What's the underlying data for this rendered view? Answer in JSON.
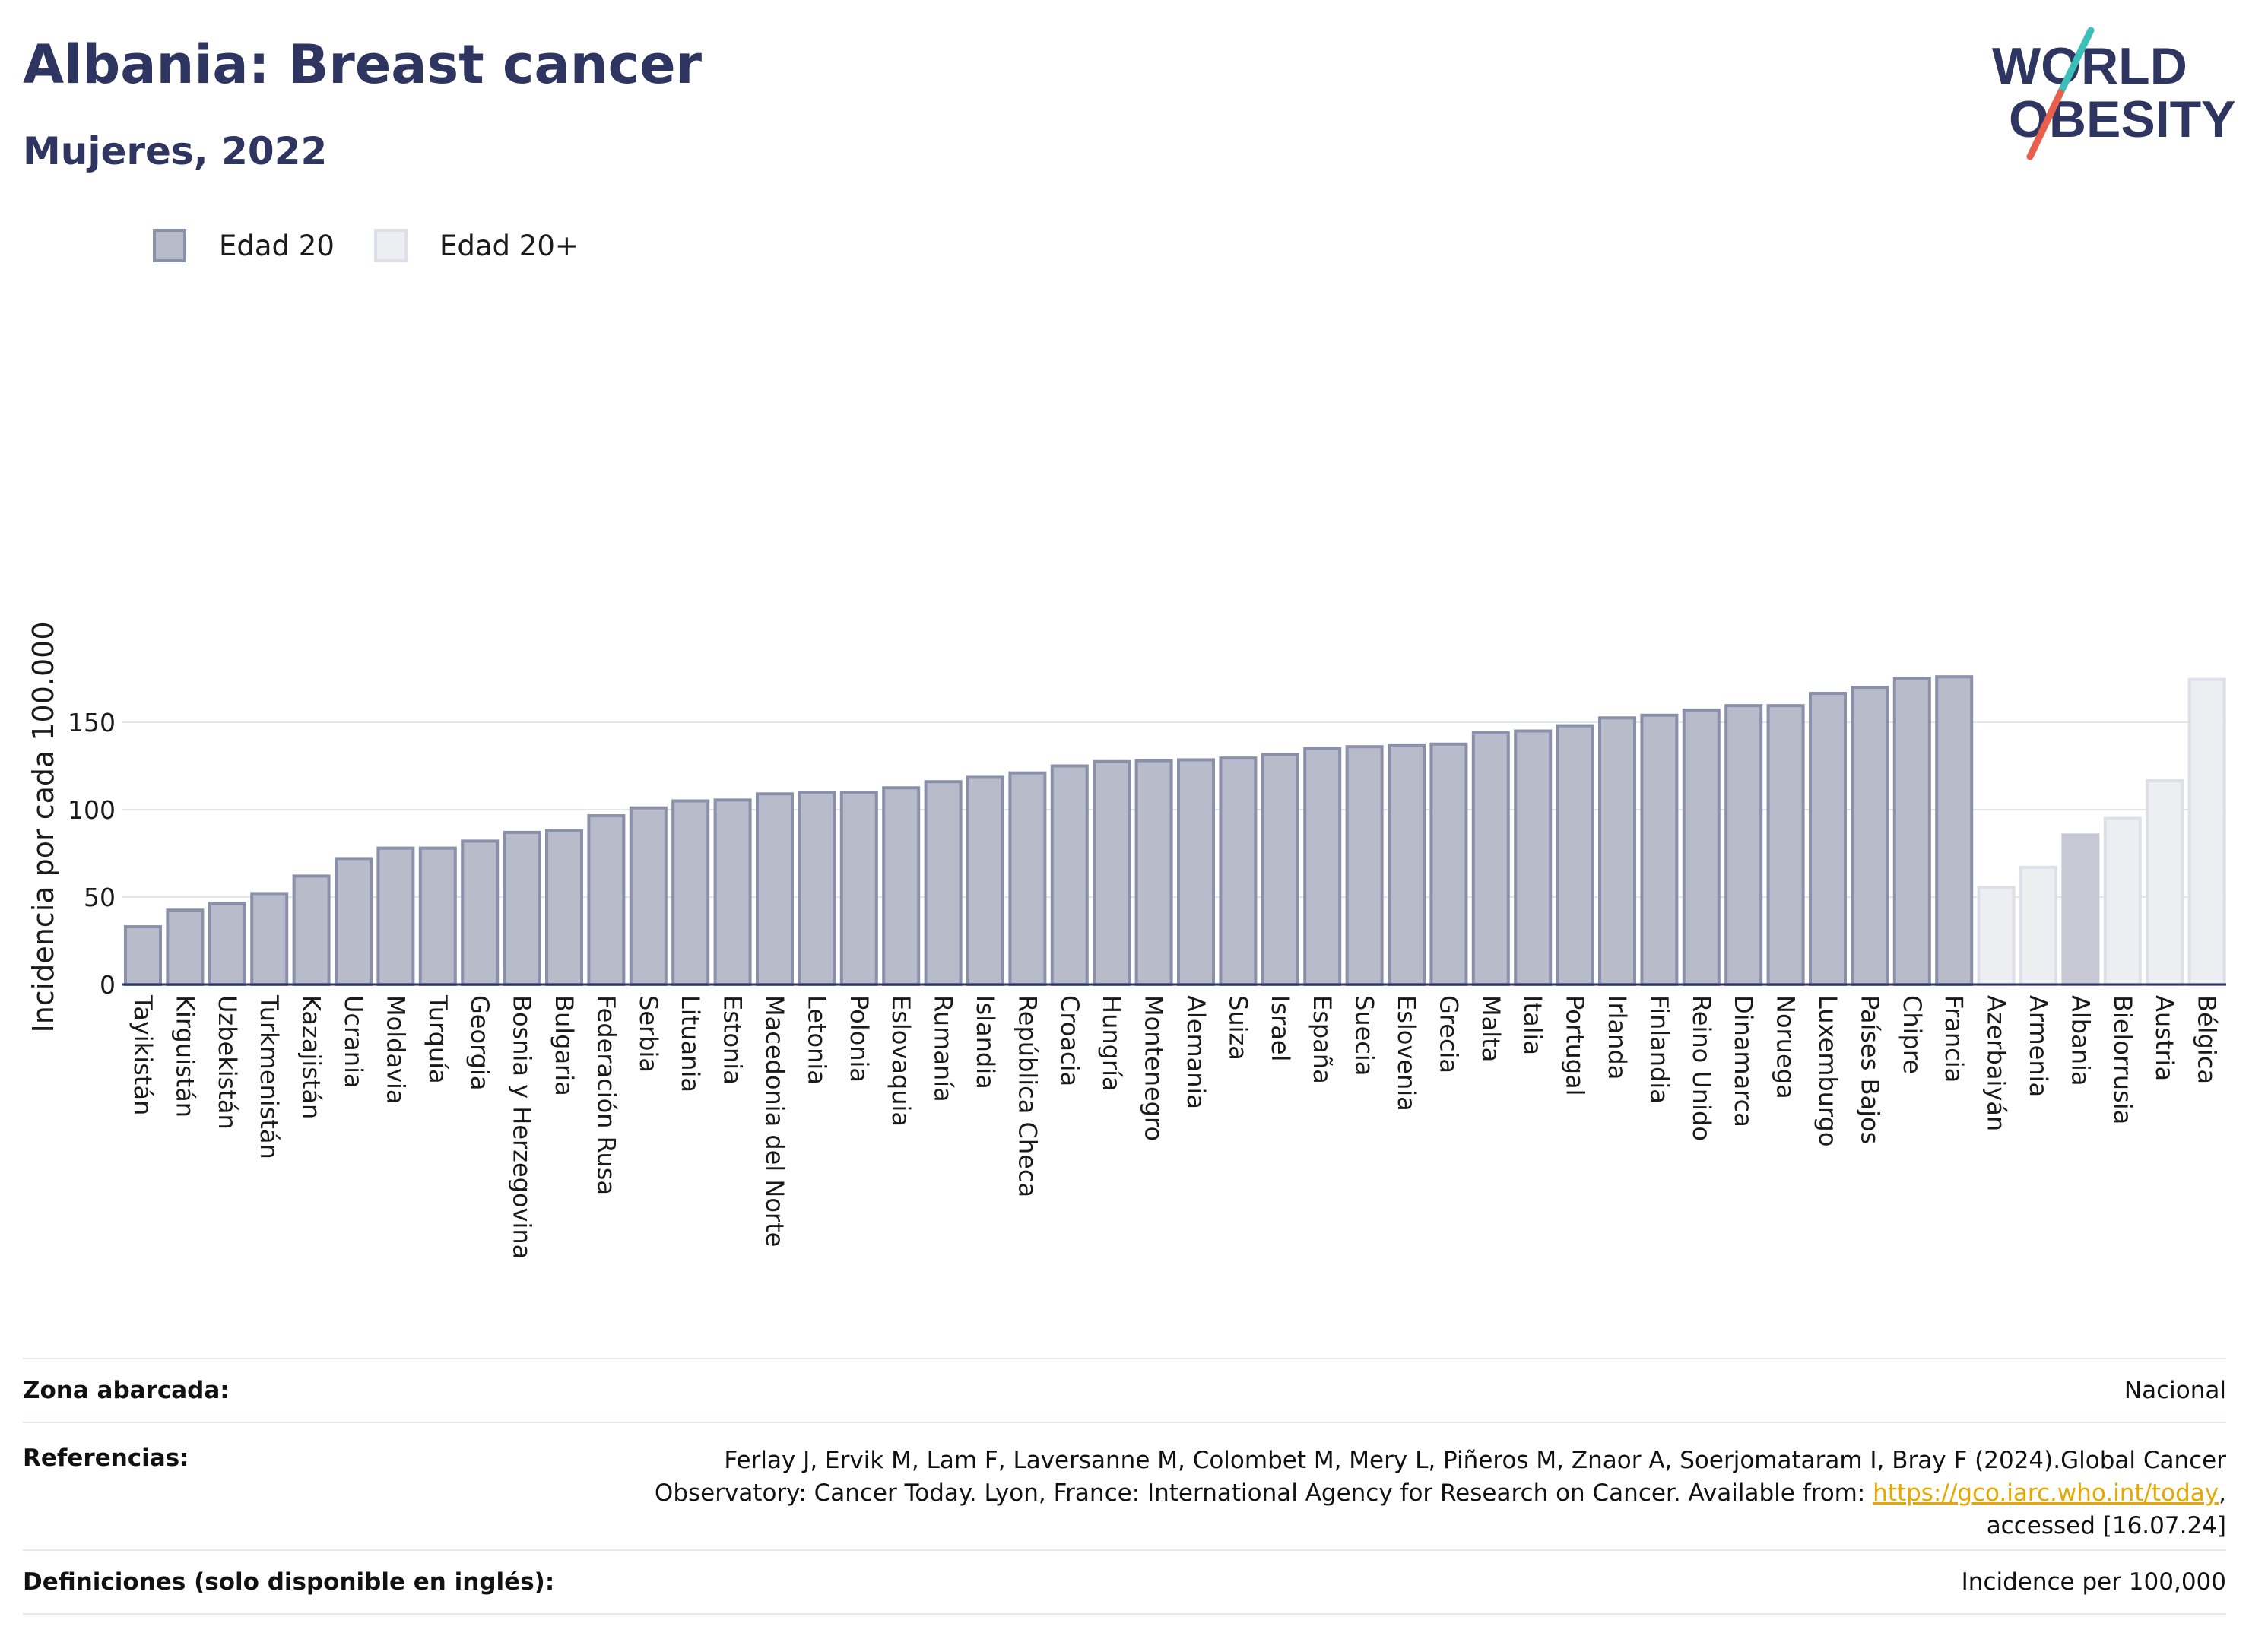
{
  "header": {
    "title": "Albania: Breast cancer",
    "subtitle": "Mujeres, 2022",
    "logo_line1": "WORLD",
    "logo_line2": "OBESITY"
  },
  "colors": {
    "dark_bar": "#b8bcca",
    "dark_bar_edge": "#8a90aa",
    "light_bar": "#eceef2",
    "light_bar_edge": "#dde0e8",
    "highlight_bar": "#c6c8d4",
    "title": "#2d3560",
    "logo_slash_teal": "#3bbfb8",
    "logo_slash_red": "#e8604c"
  },
  "chart_data": {
    "type": "bar",
    "ylabel": "Incidencia por cada 100.000",
    "ylim": [
      0,
      185
    ],
    "yticks": [
      0,
      50,
      100,
      150
    ],
    "grid": true,
    "legend_position": "top-left",
    "series": [
      {
        "name": "Edad 20",
        "categories": [
          "Tayikistán",
          "Kirguistán",
          "Uzbekistán",
          "Turkmenistán",
          "Kazajistán",
          "Ucrania",
          "Moldavia",
          "Turquía",
          "Georgia",
          "Bosnia y Herzegovina",
          "Bulgaria",
          "Federación Rusa",
          "Serbia",
          "Lituania",
          "Estonia",
          "Macedonia del Norte",
          "Letonia",
          "Polonia",
          "Eslovaquia",
          "Rumanía",
          "Islandia",
          "República Checa",
          "Croacia",
          "Hungría",
          "Montenegro",
          "Alemania",
          "Suiza",
          "Israel",
          "España",
          "Suecia",
          "Eslovenia",
          "Grecia",
          "Malta",
          "Italia",
          "Portugal",
          "Irlanda",
          "Finlandia",
          "Reino Unido",
          "Dinamarca",
          "Noruega",
          "Luxemburgo",
          "Países Bajos",
          "Chipre",
          "Francia"
        ],
        "values": [
          33,
          42.5,
          46.5,
          52,
          62,
          72,
          78,
          78,
          82,
          87,
          88,
          96.5,
          101,
          105,
          105.5,
          109,
          110,
          110,
          112.5,
          116,
          118.5,
          121,
          125,
          127.5,
          128,
          128.5,
          129.5,
          131.5,
          135,
          136,
          137,
          137.5,
          144,
          145,
          148,
          152.5,
          154,
          157,
          159.5,
          159.5,
          166.5,
          170,
          175,
          176
        ]
      },
      {
        "name": "Edad 20+",
        "categories": [
          "Azerbaiyán",
          "Armenia",
          "Albania",
          "Bielorrusia",
          "Austria",
          "Bélgica"
        ],
        "values": [
          55.5,
          67,
          85.5,
          95,
          116.5,
          174.5
        ]
      }
    ],
    "highlight": "Albania"
  },
  "info": {
    "rows": [
      {
        "key": "Zona abarcada:",
        "value": "Nacional"
      },
      {
        "key": "Referencias:",
        "value_lines": [
          "Ferlay J, Ervik M, Lam F, Laversanne M, Colombet M, Mery L, Piñeros M, Znaor A, Soerjomataram I, Bray F (2024).Global Cancer",
          "Observatory: Cancer Today. Lyon, France: International Agency for Research on Cancer. Available from: ",
          "https://gco.iarc.who.int/today",
          ",",
          "accessed [16.07.24]"
        ]
      },
      {
        "key": "Definiciones (solo disponible en inglés):",
        "value": "Incidence per 100,000"
      }
    ]
  }
}
